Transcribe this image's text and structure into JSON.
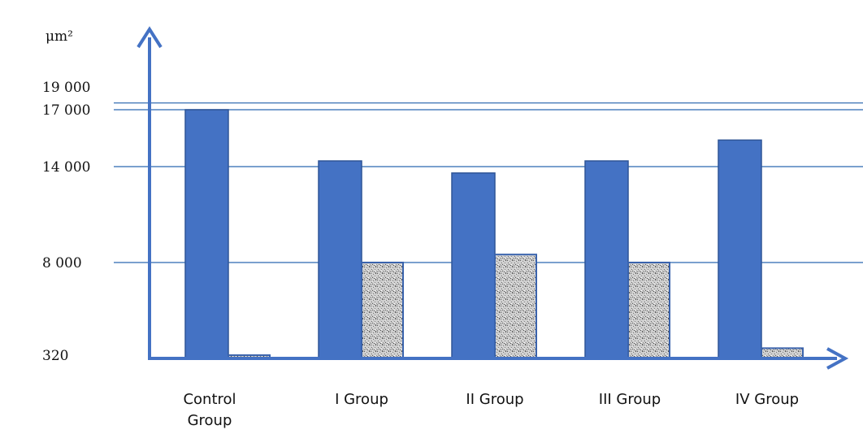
{
  "chart_data": {
    "type": "bar",
    "title": "",
    "ylabel": "μm²",
    "xlabel": "",
    "categories": [
      "Control Group",
      "I Group",
      "II Group",
      "III Group",
      "IV Group"
    ],
    "series": [
      {
        "values": [
          17000,
          14300,
          13600,
          14300,
          15400
        ]
      },
      {
        "values": [
          320,
          8000,
          8500,
          8000,
          900
        ]
      }
    ],
    "yticks": [
      {
        "value": 320,
        "label": "320"
      },
      {
        "value": 8000,
        "label": "8 000"
      },
      {
        "value": 14000,
        "label": "14 000"
      },
      {
        "value": 17000,
        "label": "17 000"
      },
      {
        "value": 19000,
        "label": "19 000"
      }
    ],
    "gridlines": [
      8000,
      14000,
      17000,
      17600
    ],
    "grid": true,
    "legend": "none",
    "colors": {
      "series_1": "#4472c4",
      "series_2_pattern": "#a6a6a6",
      "axis": "#4472c4",
      "grid": "#4f81bd"
    }
  }
}
